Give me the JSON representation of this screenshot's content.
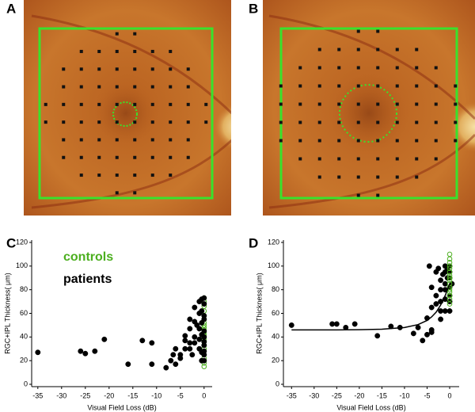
{
  "panel_labels": [
    "A",
    "B",
    "C",
    "D"
  ],
  "chart_data": [
    {
      "type": "scatter",
      "xlabel": "Visual Field Loss (dB)",
      "ylabel": "RGC+IPL Thickness( μm)",
      "xlim": [
        -36.3,
        1.7
      ],
      "ylim": [
        -2,
        122
      ],
      "xticks": [
        -35,
        -30,
        -25,
        -20,
        -15,
        -10,
        -5,
        0
      ],
      "yticks": [
        0,
        20,
        40,
        60,
        80,
        100,
        120
      ],
      "legend": "upper-left",
      "series": [
        {
          "name": "controls",
          "color": "#4caf1f",
          "marker": "hollow",
          "x": [
            0,
            0,
            0,
            0,
            0,
            0,
            0,
            0,
            0,
            0,
            0,
            0,
            0,
            0,
            0,
            0,
            0,
            0,
            0,
            0,
            0,
            0
          ],
          "values": [
            15,
            18,
            22,
            25,
            28,
            30,
            33,
            36,
            38,
            40,
            42,
            44,
            46,
            48,
            50,
            52,
            55,
            58,
            62,
            66,
            70,
            73
          ]
        },
        {
          "name": "patients",
          "color": "#000000",
          "marker": "filled",
          "x": [
            -35,
            -26,
            -25,
            -23,
            -21,
            -16,
            -13,
            -11,
            -11,
            -8,
            -7,
            -6,
            -5,
            -5,
            -4,
            -4,
            -3,
            -3,
            -3,
            -2,
            -2,
            -2,
            -2,
            -1,
            -1,
            -1,
            -1,
            -1,
            0,
            0,
            0,
            0,
            0,
            0,
            0,
            0,
            0,
            0,
            0,
            -4,
            -6,
            -3,
            -1.5,
            -2.5,
            -0.5,
            -0.5,
            -0.5,
            -0.5,
            -0.5,
            -0.5,
            -6.5
          ],
          "values": [
            27,
            28,
            26,
            28,
            38,
            17,
            37,
            35,
            17,
            14,
            20,
            17,
            25,
            22,
            30,
            41,
            30,
            47,
            55,
            35,
            40,
            53,
            65,
            47,
            60,
            70,
            30,
            38,
            73,
            68,
            58,
            55,
            45,
            40,
            36,
            33,
            28,
            25,
            20,
            37,
            30,
            35,
            50,
            25,
            62,
            52,
            42,
            27,
            20,
            72,
            25
          ]
        }
      ]
    },
    {
      "type": "scatter",
      "xlabel": "Visual Field Loss (dB)",
      "ylabel": "RGC+IPL Thickness( μm)",
      "xlim": [
        -36.8,
        2.1
      ],
      "ylim": [
        -2,
        122
      ],
      "xticks": [
        -35,
        -30,
        -25,
        -20,
        -15,
        -10,
        -5,
        0
      ],
      "yticks": [
        0,
        20,
        40,
        60,
        80,
        100,
        120
      ],
      "series": [
        {
          "color": "#000000",
          "marker": "filled",
          "x": [
            -35,
            -26,
            -25,
            -23,
            -21,
            -16,
            -13,
            -11,
            -8,
            -7,
            -6,
            -5,
            -5,
            -4,
            -4,
            -4,
            -3,
            -3,
            -3,
            -2,
            -2,
            -2,
            -2,
            -2,
            -1,
            -1,
            -1,
            -1,
            -1,
            -1,
            0,
            0,
            0,
            0,
            0,
            0,
            0,
            0.5,
            -0.5,
            -0.5,
            -4.5,
            -4,
            -2.5,
            -1.5
          ],
          "values": [
            50,
            51,
            51,
            48,
            51,
            41,
            49,
            48,
            43,
            48,
            37,
            42,
            56,
            44,
            46,
            65,
            95,
            75,
            68,
            80,
            70,
            62,
            55,
            88,
            100,
            95,
            85,
            80,
            62,
            72,
            100,
            95,
            90,
            82,
            75,
            70,
            62,
            85,
            90,
            98,
            100,
            82,
            98,
            93
          ]
        },
        {
          "color": "#4caf1f",
          "marker": "hollow",
          "x": [
            0,
            0,
            0,
            0,
            0,
            0,
            0,
            0,
            0,
            0,
            0,
            0,
            0,
            0,
            0,
            0
          ],
          "values": [
            68,
            72,
            75,
            78,
            80,
            82,
            85,
            88,
            90,
            92,
            95,
            98,
            100,
            103,
            106,
            110
          ]
        },
        {
          "color": "#000000",
          "marker": "line",
          "x": [
            -35,
            -30,
            -25,
            -20,
            -15,
            -10,
            -7,
            -5,
            -4,
            -3,
            -2,
            -1,
            0
          ],
          "values": [
            46,
            46,
            46,
            46.2,
            46.6,
            48,
            50.5,
            54,
            57,
            61,
            67,
            75,
            85
          ]
        }
      ]
    }
  ]
}
